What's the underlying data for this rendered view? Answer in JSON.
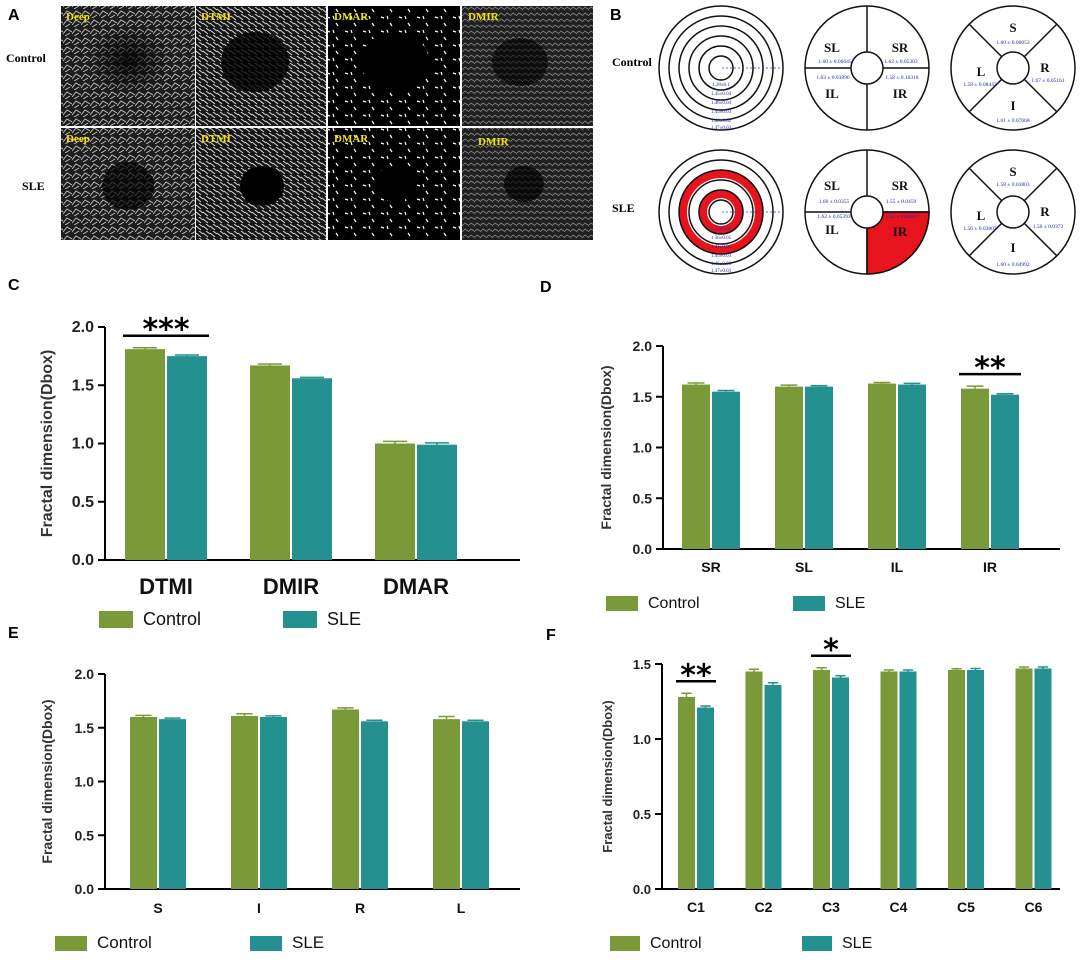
{
  "colors": {
    "control": "#7A9A39",
    "sle": "#24908F",
    "highlight": "#E8141D",
    "ylabel": "#333333",
    "value_text": "#1a2aa8",
    "micro_label": "#f2e300"
  },
  "panel_letters": [
    "A",
    "B",
    "C",
    "D",
    "E",
    "F"
  ],
  "panel_a": {
    "row_labels": [
      "Control",
      "SLE"
    ],
    "image_labels": [
      "Deep",
      "DTMI",
      "DMAR",
      "DMIR"
    ]
  },
  "panel_b": {
    "row_labels": [
      "Control",
      "SLE"
    ],
    "control": {
      "quadrants": [
        {
          "label": "SL",
          "value": "1.60 ± 0.06645"
        },
        {
          "label": "SR",
          "value": "1.62 ± 0.05303"
        },
        {
          "label": "IL",
          "value": "1.63 ± 0.03896"
        },
        {
          "label": "IR",
          "value": "1.58 ± 0.10318"
        }
      ],
      "sectors": [
        {
          "label": "S",
          "value": "1.60 ± 0.06053"
        },
        {
          "label": "L",
          "value": "1.58 ± 0.08442"
        },
        {
          "label": "R",
          "value": "1.67 ± 0.05161"
        },
        {
          "label": "I",
          "value": "1.61 ± 0.07668"
        }
      ],
      "rings": [
        "1.28±0.1",
        "1.45±0.04",
        "1.46±0.04",
        "1.45±0.03",
        "1.46±0.02",
        "1.47±0.03"
      ]
    },
    "sle": {
      "quadrants": [
        {
          "label": "SL",
          "value": "1.60 ± 0.0355"
        },
        {
          "label": "SR",
          "value": "1.55 ± 0.0459"
        },
        {
          "label": "IL",
          "value": "1.62 ± 0.05393"
        },
        {
          "label": "IR",
          "value": "1.52 ± 0.03037"
        }
      ],
      "sectors": [
        {
          "label": "S",
          "value": "1.58 ± 0.03803"
        },
        {
          "label": "L",
          "value": "1.56 ± 0.03807"
        },
        {
          "label": "R",
          "value": "1.56 ± 0.0372"
        },
        {
          "label": "I",
          "value": "1.60 ± 0.04992"
        }
      ],
      "rings": [
        "1.21±0.03",
        "1.36±0.05",
        "1.41±0.04",
        "1.45±0.03",
        "1.46±0.03",
        "1.47±0.03"
      ]
    }
  },
  "legend": {
    "control": "Control",
    "sle": "SLE"
  },
  "chart_data": [
    {
      "panel": "C",
      "type": "bar",
      "categories": [
        "DTMI",
        "DMIR",
        "DMAR"
      ],
      "series": [
        {
          "name": "Control",
          "values": [
            1.81,
            1.67,
            1.0
          ],
          "errors": [
            0.012,
            0.012,
            0.018
          ]
        },
        {
          "name": "SLE",
          "values": [
            1.75,
            1.56,
            0.99
          ],
          "errors": [
            0.01,
            0.008,
            0.015
          ]
        }
      ],
      "ylabel": "Fractal dimension(Dbox)",
      "ylim": [
        0,
        2.0
      ],
      "yticks": [
        0.0,
        0.5,
        1.0,
        1.5,
        2.0
      ],
      "ytick_labels": [
        "0.0",
        "0.5",
        "1.0",
        "1.5",
        "2.0"
      ],
      "significance": [
        {
          "category": "DTMI",
          "label": "***"
        }
      ]
    },
    {
      "panel": "D",
      "type": "bar",
      "categories": [
        "SR",
        "SL",
        "IL",
        "IR"
      ],
      "series": [
        {
          "name": "Control",
          "values": [
            1.62,
            1.6,
            1.63,
            1.58
          ],
          "errors": [
            0.015,
            0.015,
            0.01,
            0.025
          ]
        },
        {
          "name": "SLE",
          "values": [
            1.55,
            1.6,
            1.62,
            1.52
          ],
          "errors": [
            0.012,
            0.01,
            0.012,
            0.01
          ]
        }
      ],
      "ylabel": "Fractal dimension(Dbox)",
      "ylim": [
        0,
        2.0
      ],
      "yticks": [
        0.0,
        0.5,
        1.0,
        1.5,
        2.0
      ],
      "ytick_labels": [
        "0.0",
        "0.5",
        "1.0",
        "1.5",
        "2.0"
      ],
      "significance": [
        {
          "category": "IR",
          "label": "**"
        }
      ]
    },
    {
      "panel": "E",
      "type": "bar",
      "categories": [
        "S",
        "I",
        "R",
        "L"
      ],
      "series": [
        {
          "name": "Control",
          "values": [
            1.6,
            1.61,
            1.67,
            1.58
          ],
          "errors": [
            0.015,
            0.02,
            0.015,
            0.025
          ]
        },
        {
          "name": "SLE",
          "values": [
            1.58,
            1.6,
            1.56,
            1.56
          ],
          "errors": [
            0.01,
            0.01,
            0.01,
            0.01
          ]
        }
      ],
      "ylabel": "Fractal dimension(Dbox)",
      "ylim": [
        0,
        2.0
      ],
      "yticks": [
        0.0,
        0.5,
        1.0,
        1.5,
        2.0
      ],
      "ytick_labels": [
        "0.0",
        "0.5",
        "1.0",
        "1.5",
        "2.0"
      ],
      "significance": []
    },
    {
      "panel": "F",
      "type": "bar",
      "categories": [
        "C1",
        "C2",
        "C3",
        "C4",
        "C5",
        "C6"
      ],
      "series": [
        {
          "name": "Control",
          "values": [
            1.28,
            1.45,
            1.46,
            1.45,
            1.46,
            1.47
          ],
          "errors": [
            0.025,
            0.015,
            0.015,
            0.01,
            0.008,
            0.01
          ]
        },
        {
          "name": "SLE",
          "values": [
            1.21,
            1.36,
            1.41,
            1.45,
            1.46,
            1.47
          ],
          "errors": [
            0.01,
            0.015,
            0.012,
            0.01,
            0.01,
            0.01
          ]
        }
      ],
      "ylabel": "Fractal dimension(Dbox)",
      "ylim": [
        0,
        1.5
      ],
      "yticks": [
        0.0,
        0.5,
        1.0,
        1.5
      ],
      "ytick_labels": [
        "0.0",
        "0.5",
        "1.0",
        "1.5"
      ],
      "significance": [
        {
          "category": "C1",
          "label": "**"
        },
        {
          "category": "C3",
          "label": "*"
        }
      ]
    }
  ]
}
